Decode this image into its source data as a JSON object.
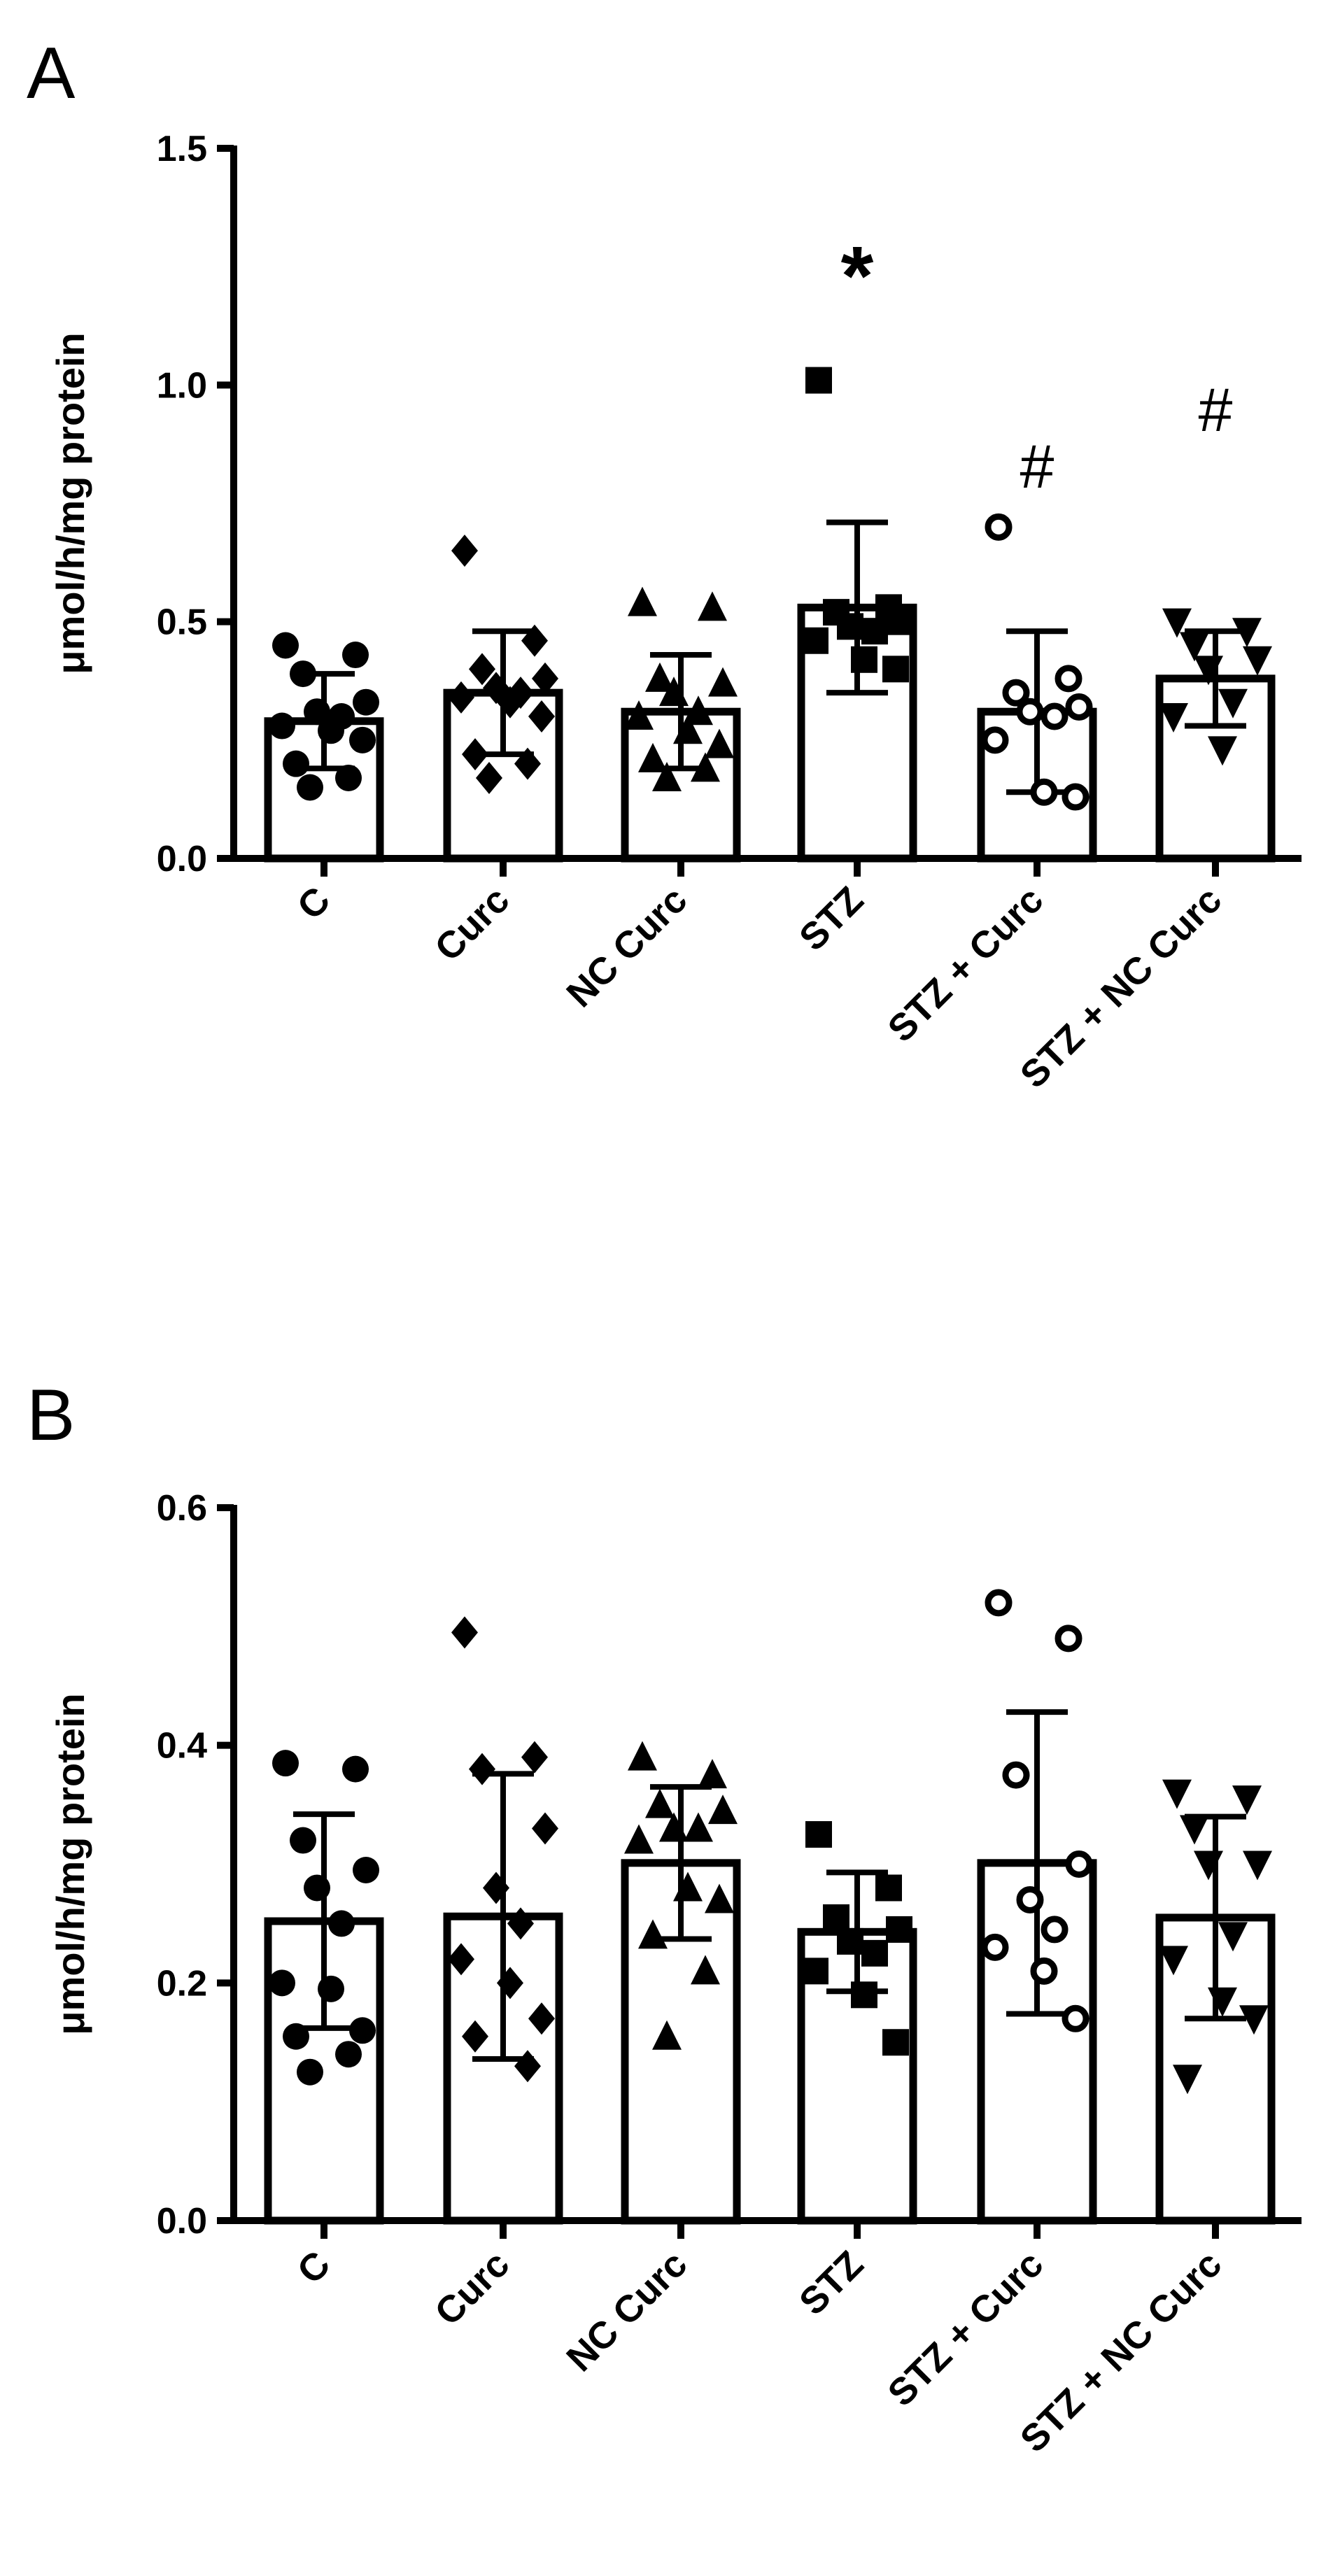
{
  "chart_data": [
    {
      "panel": "A",
      "type": "bar",
      "ylabel": "μmol/h/mg protein",
      "ylim": [
        0,
        1.5
      ],
      "yticks": [
        0.0,
        0.5,
        1.0,
        1.5
      ],
      "ytick_labels": [
        "0.0",
        "0.5",
        "1.0",
        "1.5"
      ],
      "categories": [
        "C",
        "Curc",
        "NC Curc",
        "STZ",
        "STZ + Curc",
        "STZ + NC Curc"
      ],
      "series": [
        {
          "name": "C",
          "mean": 0.29,
          "sd": 0.1,
          "marker": "circle-filled",
          "points": [
            0.45,
            0.43,
            0.39,
            0.33,
            0.31,
            0.3,
            0.28,
            0.27,
            0.25,
            0.2,
            0.17,
            0.15
          ]
        },
        {
          "name": "Curc",
          "mean": 0.35,
          "sd": 0.13,
          "marker": "diamond-filled",
          "points": [
            0.65,
            0.46,
            0.4,
            0.38,
            0.36,
            0.35,
            0.34,
            0.33,
            0.3,
            0.22,
            0.2,
            0.17
          ]
        },
        {
          "name": "NC Curc",
          "mean": 0.31,
          "sd": 0.12,
          "marker": "triangle-up-filled",
          "points": [
            0.54,
            0.53,
            0.38,
            0.37,
            0.35,
            0.31,
            0.3,
            0.27,
            0.24,
            0.21,
            0.19,
            0.17
          ]
        },
        {
          "name": "STZ",
          "mean": 0.53,
          "sd": 0.18,
          "marker": "square-filled",
          "points": [
            1.01,
            0.53,
            0.52,
            0.5,
            0.49,
            0.48,
            0.46,
            0.42,
            0.4
          ]
        },
        {
          "name": "STZ + Curc",
          "mean": 0.31,
          "sd": 0.17,
          "marker": "circle-open",
          "points": [
            0.7,
            0.38,
            0.35,
            0.32,
            0.31,
            0.3,
            0.25,
            0.14,
            0.13
          ]
        },
        {
          "name": "STZ + NC Curc",
          "mean": 0.38,
          "sd": 0.1,
          "marker": "triangle-down-filled",
          "points": [
            0.5,
            0.48,
            0.45,
            0.42,
            0.4,
            0.33,
            0.3,
            0.23
          ]
        }
      ],
      "annotations": [
        {
          "category": "STZ",
          "text": "*",
          "y": 1.28
        },
        {
          "category": "STZ + Curc",
          "text": "#",
          "y": 0.83
        },
        {
          "category": "STZ + NC Curc",
          "text": "#",
          "y": 0.95
        }
      ]
    },
    {
      "panel": "B",
      "type": "bar",
      "ylabel": "μmol/h/mg protein",
      "ylim": [
        0,
        0.6
      ],
      "yticks": [
        0.0,
        0.2,
        0.4,
        0.6
      ],
      "ytick_labels": [
        "0.0",
        "0.2",
        "0.4",
        "0.6"
      ],
      "categories": [
        "C",
        "Curc",
        "NC Curc",
        "STZ",
        "STZ + Curc",
        "STZ + NC Curc"
      ],
      "series": [
        {
          "name": "C",
          "mean": 0.252,
          "sd": 0.09,
          "marker": "circle-filled",
          "points": [
            0.385,
            0.38,
            0.32,
            0.295,
            0.28,
            0.25,
            0.2,
            0.195,
            0.16,
            0.155,
            0.14,
            0.125
          ]
        },
        {
          "name": "Curc",
          "mean": 0.256,
          "sd": 0.12,
          "marker": "diamond-filled",
          "points": [
            0.495,
            0.39,
            0.38,
            0.33,
            0.28,
            0.25,
            0.22,
            0.2,
            0.17,
            0.155,
            0.13
          ]
        },
        {
          "name": "NC Curc",
          "mean": 0.301,
          "sd": 0.064,
          "marker": "triangle-up-filled",
          "points": [
            0.39,
            0.375,
            0.35,
            0.345,
            0.33,
            0.33,
            0.32,
            0.28,
            0.27,
            0.24,
            0.21,
            0.155
          ]
        },
        {
          "name": "STZ",
          "mean": 0.243,
          "sd": 0.05,
          "marker": "square-filled",
          "points": [
            0.325,
            0.28,
            0.255,
            0.245,
            0.235,
            0.225,
            0.21,
            0.19,
            0.15
          ]
        },
        {
          "name": "STZ + Curc",
          "mean": 0.301,
          "sd": 0.127,
          "marker": "circle-open",
          "points": [
            0.52,
            0.49,
            0.375,
            0.3,
            0.27,
            0.245,
            0.23,
            0.21,
            0.17
          ]
        },
        {
          "name": "STZ + NC Curc",
          "mean": 0.255,
          "sd": 0.085,
          "marker": "triangle-down-filled",
          "points": [
            0.36,
            0.355,
            0.33,
            0.3,
            0.3,
            0.24,
            0.22,
            0.185,
            0.17,
            0.12
          ]
        }
      ],
      "annotations": []
    }
  ]
}
